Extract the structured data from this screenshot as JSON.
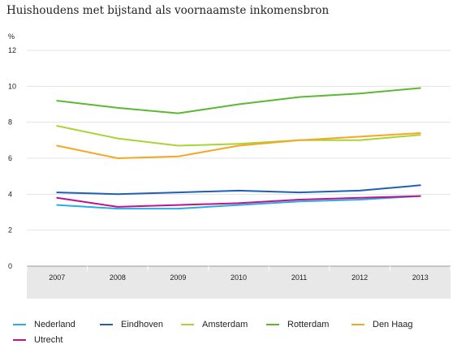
{
  "chart_data": {
    "type": "line",
    "title": "Huishoudens met bijstand als voornaamste inkomensbron",
    "ylabel": "%",
    "xlabel": "",
    "x": [
      "2007",
      "2008",
      "2009",
      "2010",
      "2011",
      "2012",
      "2013"
    ],
    "ylim": [
      0,
      12
    ],
    "yticks": [
      0,
      2,
      4,
      6,
      8,
      10,
      12
    ],
    "grid": "horizontal",
    "legend_position": "bottom",
    "series": [
      {
        "name": "Nederland",
        "color": "#27aee0",
        "values": [
          3.4,
          3.2,
          3.2,
          3.4,
          3.6,
          3.7,
          3.9
        ]
      },
      {
        "name": "Eindhoven",
        "color": "#1f5fb5",
        "values": [
          4.1,
          4.0,
          4.1,
          4.2,
          4.1,
          4.2,
          4.5
        ]
      },
      {
        "name": "Amsterdam",
        "color": "#a8d533",
        "values": [
          7.8,
          7.1,
          6.7,
          6.8,
          7.0,
          7.0,
          7.3
        ]
      },
      {
        "name": "Rotterdam",
        "color": "#5bb833",
        "values": [
          9.2,
          8.8,
          8.5,
          9.0,
          9.4,
          9.6,
          9.9
        ]
      },
      {
        "name": "Den Haag",
        "color": "#f5a623",
        "values": [
          6.7,
          6.0,
          6.1,
          6.7,
          7.0,
          7.2,
          7.4
        ]
      },
      {
        "name": "Utrecht",
        "color": "#c0128f",
        "values": [
          3.8,
          3.3,
          3.4,
          3.5,
          3.7,
          3.8,
          3.9
        ]
      }
    ]
  }
}
